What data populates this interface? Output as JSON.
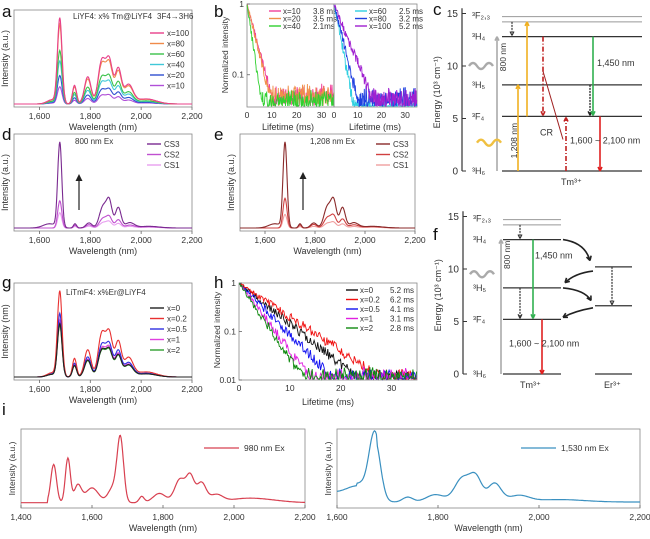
{
  "chart_data": [
    {
      "panel": "a",
      "type": "line",
      "title": "LiYF4: x% Tm@LiYF4",
      "annotation": "3F4→3H6",
      "xlabel": "Wavelength (nm)",
      "ylabel": "Intensity (a.u.)",
      "xlim": [
        1500,
        2200
      ],
      "xticks": [
        1600,
        1800,
        2000,
        2200
      ],
      "xtick_labels": [
        "1,600",
        "1,800",
        "2,000",
        "2,200"
      ],
      "legend_position": "top-right",
      "series": [
        {
          "name": "x=100",
          "color": "#e8408a",
          "scale": 1.0
        },
        {
          "name": "x=80",
          "color": "#f08a4a",
          "scale": 0.92
        },
        {
          "name": "x=60",
          "color": "#3cc24a",
          "scale": 0.62
        },
        {
          "name": "x=40",
          "color": "#40c8d8",
          "scale": 0.5
        },
        {
          "name": "x=20",
          "color": "#3050d0",
          "scale": 0.33
        },
        {
          "name": "x=10",
          "color": "#b050d8",
          "scale": 0.2
        }
      ]
    },
    {
      "panel": "b",
      "type": "line",
      "xlabel": "Lifetime (ms)",
      "ylabel": "Normalized intensity",
      "yscale": "log",
      "xlim": [
        0,
        35
      ],
      "xticks": [
        0,
        10,
        20,
        30
      ],
      "ytick_labels": [
        "1",
        "0.1"
      ],
      "legend_position": "top-right",
      "left_series": [
        {
          "name": "x=10",
          "lifetime": "3.8 ms",
          "color": "#f0409a",
          "tau": 3.8
        },
        {
          "name": "x=20",
          "lifetime": "3.5 ms",
          "color": "#f0904a",
          "tau": 3.5
        },
        {
          "name": "x=40",
          "lifetime": "2.1ms",
          "color": "#30d030",
          "tau": 2.1
        }
      ],
      "right_series": [
        {
          "name": "x=60",
          "lifetime": "2.5 ms",
          "color": "#30d0e0",
          "tau": 2.5
        },
        {
          "name": "x=80",
          "lifetime": "3.2 ms",
          "color": "#2040e0",
          "tau": 3.2
        },
        {
          "name": "x=100",
          "lifetime": "5.2 ms",
          "color": "#a020d0",
          "tau": 5.2
        }
      ]
    },
    {
      "panel": "d",
      "type": "line",
      "annotation": "800 nm Ex",
      "xlabel": "Wavelength (nm)",
      "ylabel": "Intensity (a.u.)",
      "xlim": [
        1500,
        2200
      ],
      "xticks": [
        1600,
        1800,
        2000,
        2200
      ],
      "xtick_labels": [
        "1,600",
        "1,800",
        "2,000",
        "2,200"
      ],
      "legend_position": "top-right",
      "series": [
        {
          "name": "CS3",
          "color": "#7a2a90",
          "scale": 1.0
        },
        {
          "name": "CS2",
          "color": "#c050d0",
          "scale": 0.32
        },
        {
          "name": "CS1",
          "color": "#e8a0f0",
          "scale": 0.18
        }
      ]
    },
    {
      "panel": "e",
      "type": "line",
      "annotation": "1,208 nm Ex",
      "xlabel": "Wavelength (nm)",
      "ylabel": "Intensity (a.u.)",
      "xlim": [
        1500,
        2200
      ],
      "xticks": [
        1600,
        1800,
        2000,
        2200
      ],
      "xtick_labels": [
        "1,600",
        "1,800",
        "2,000",
        "2,200"
      ],
      "legend_position": "top-right",
      "series": [
        {
          "name": "CS3",
          "color": "#8a2a2a",
          "scale": 1.0
        },
        {
          "name": "CS2",
          "color": "#d04040",
          "scale": 0.35
        },
        {
          "name": "CS1",
          "color": "#f0a0a0",
          "scale": 0.16
        }
      ]
    },
    {
      "panel": "f",
      "type": "line",
      "title": "LiTmF4: x%Er@LiYF4",
      "xlabel": "Wavelength (nm)",
      "ylabel": "Intensity (nm)",
      "xlim": [
        1500,
        2200
      ],
      "xticks": [
        1600,
        1800,
        2000,
        2200
      ],
      "xtick_labels": [
        "1,600",
        "1,800",
        "2,000",
        "2,200"
      ],
      "legend_position": "top-right",
      "series": [
        {
          "name": "x=0",
          "color": "#222222",
          "scale": 0.62
        },
        {
          "name": "x=0.2",
          "color": "#e83030",
          "scale": 1.0
        },
        {
          "name": "x=0.5",
          "color": "#3030e0",
          "scale": 0.74
        },
        {
          "name": "x=1",
          "color": "#e040e0",
          "scale": 0.66
        },
        {
          "name": "x=2",
          "color": "#30a030",
          "scale": 0.6
        }
      ]
    },
    {
      "panel": "g",
      "type": "line",
      "xlabel": "Lifetime (ms)",
      "ylabel": "Normalized intensity",
      "yscale": "log",
      "xlim": [
        0,
        35
      ],
      "ylim": [
        0.01,
        1
      ],
      "xticks": [
        0,
        10,
        20,
        30
      ],
      "ytick_labels": [
        "1",
        "0.1",
        "0.01"
      ],
      "legend_position": "top-right",
      "series": [
        {
          "name": "x=0",
          "lifetime": "5.2 ms",
          "color": "#111111",
          "tau": 5.2
        },
        {
          "name": "x=0.2",
          "lifetime": "6.2 ms",
          "color": "#f01010",
          "tau": 6.2
        },
        {
          "name": "x=0.5",
          "lifetime": "4.1 ms",
          "color": "#1010f0",
          "tau": 4.1
        },
        {
          "name": "x=1",
          "lifetime": "3.1 ms",
          "color": "#e020e0",
          "tau": 3.1
        },
        {
          "name": "x=2",
          "lifetime": "2.8 ms",
          "color": "#108a10",
          "tau": 2.8
        }
      ]
    },
    {
      "panel": "i-left",
      "type": "line",
      "xlabel": "Wavelength (nm)",
      "ylabel": "Intensity (a.u.)",
      "xlim": [
        1400,
        2200
      ],
      "xticks": [
        1400,
        1600,
        1800,
        2000,
        2200
      ],
      "xtick_labels": [
        "1,400",
        "1,600",
        "1,800",
        "2,000",
        "2,200"
      ],
      "legend_position": "top-right",
      "series": [
        {
          "name": "980 nm Ex",
          "color": "#d84050"
        }
      ]
    },
    {
      "panel": "i-right",
      "type": "line",
      "xlabel": "Wavelength (nm)",
      "ylabel": "Intensity (a.u.)",
      "xlim": [
        1600,
        2200
      ],
      "xticks": [
        1600,
        1800,
        2000,
        2200
      ],
      "xtick_labels": [
        "1,600",
        "1,800",
        "2,000",
        "2,200"
      ],
      "legend_position": "top-right",
      "series": [
        {
          "name": "1,530 nm Ex",
          "color": "#3a90c0"
        }
      ]
    }
  ],
  "diagrams": {
    "c": {
      "ylabel": "Energy (10³ cm⁻¹)",
      "yticks": [
        "0",
        "5",
        "10",
        "15"
      ],
      "levels": [
        "³F₂,₃",
        "³H₄",
        "³H₅",
        "³F₄",
        "³H₆"
      ],
      "ion": "Tm³⁺",
      "labels": {
        "pump800": "800 nm",
        "pump1208": "1,208 nm",
        "em1450": "1,450 nm",
        "cr": "CR",
        "em1600": "1,600 ~ 2,100 nm"
      }
    },
    "h": {
      "ylabel": "Energy (10³ cm⁻¹)",
      "yticks": [
        "0",
        "5",
        "10",
        "15"
      ],
      "levels": [
        "³F₂,₃",
        "³H₄",
        "³H₅",
        "³F₄",
        "³H₆"
      ],
      "ion_tm": "Tm³⁺",
      "ion_er": "Er³⁺",
      "labels": {
        "pump800": "800 nm",
        "em1450": "1,450 nm",
        "em1600": "1,600 ~ 2,100 nm"
      }
    }
  },
  "panel_labels": [
    "a",
    "b",
    "c",
    "d",
    "e",
    "f",
    "g",
    "h",
    "i"
  ]
}
